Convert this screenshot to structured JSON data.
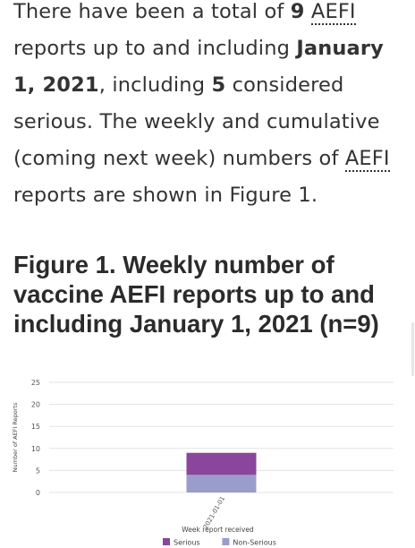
{
  "intro": {
    "p1": "There have been a total of ",
    "total": "9",
    "abbr1": "AEFI",
    "p2": " reports up to and including ",
    "date": "January 1, 2021",
    "p3": ", including ",
    "serious": "5",
    "p4": " considered serious. The weekly and cumulative (coming next week) numbers of ",
    "abbr2": "AEFI",
    "p5": " reports are shown in Figure 1."
  },
  "figure": {
    "title": "Figure 1. Weekly number of vaccine AEFI reports up to and including January 1, 2021 (n=9)"
  },
  "chart_data": {
    "type": "bar",
    "stacked": true,
    "categories": [
      "2021-01-01"
    ],
    "series": [
      {
        "name": "Non-Serious",
        "values": [
          4
        ],
        "color": "#9a9ccc"
      },
      {
        "name": "Serious",
        "values": [
          5
        ],
        "color": "#8a459c"
      }
    ],
    "xlabel": "Week report received",
    "ylabel": "Number of AEFI Reports",
    "ylim": [
      0,
      25
    ],
    "yticks": [
      0,
      5,
      10,
      15,
      20,
      25
    ],
    "grid": true,
    "legend_position": "bottom"
  }
}
